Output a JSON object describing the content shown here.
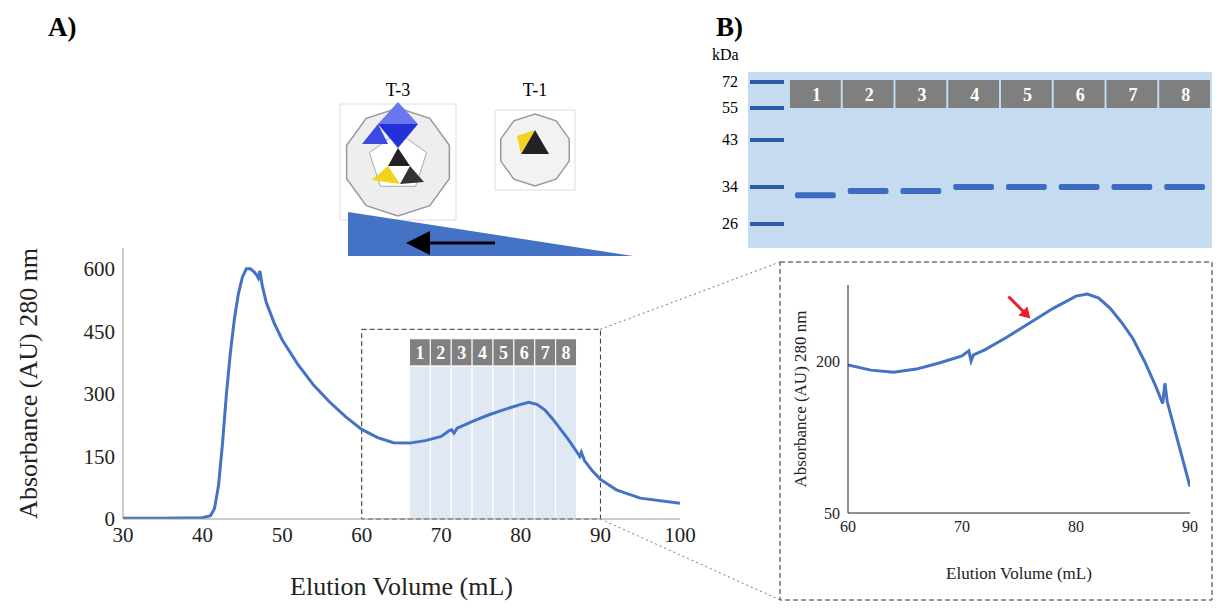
{
  "panel_labels": [
    "A)",
    "B)"
  ],
  "chart_data": [
    {
      "type": "line",
      "x_label": "Elution  Volume (mL)",
      "y_label": "Absorbance (AU) 280 nm",
      "x": [
        30,
        35,
        40,
        41,
        41.5,
        42,
        42.5,
        43,
        43.5,
        44,
        44.5,
        45,
        45.5,
        46,
        46.5,
        46.8,
        47,
        47.2,
        47.5,
        48,
        49,
        50,
        52,
        54,
        56,
        58,
        60,
        62,
        64,
        66,
        68,
        70,
        71,
        71.3,
        71.6,
        72,
        74,
        76,
        78,
        80,
        81,
        82,
        83,
        84,
        85,
        86,
        87,
        87.4,
        87.6,
        88,
        89,
        90,
        92,
        95,
        100
      ],
      "values": [
        2,
        2,
        3,
        8,
        25,
        80,
        180,
        300,
        400,
        480,
        540,
        580,
        600,
        600,
        592,
        585,
        578,
        595,
        560,
        520,
        470,
        430,
        370,
        320,
        280,
        245,
        215,
        195,
        183,
        182,
        188,
        198,
        212,
        214,
        206,
        218,
        235,
        250,
        263,
        275,
        280,
        275,
        262,
        240,
        215,
        190,
        162,
        150,
        160,
        140,
        115,
        95,
        70,
        50,
        38
      ],
      "color": "#4472c4",
      "xlim": [
        30,
        100
      ],
      "xticks": [
        30,
        40,
        50,
        60,
        70,
        80,
        90,
        100
      ],
      "ylim": [
        0,
        650
      ],
      "yticks": [
        0,
        150,
        300,
        450,
        600
      ],
      "fractions": {
        "labels": [
          "1",
          "2",
          "3",
          "4",
          "5",
          "6",
          "7",
          "8"
        ],
        "start": 66,
        "end": 87
      }
    },
    {
      "type": "line",
      "x_label": "Elution  Volume (mL)",
      "y_label": "Absorbance (AU) 280 nm",
      "x": [
        60,
        62,
        64,
        66,
        68,
        70,
        70.6,
        70.8,
        71,
        72,
        74,
        76,
        78,
        80,
        81,
        82,
        83,
        84,
        85,
        86,
        87,
        87.6,
        87.8,
        88,
        89,
        90
      ],
      "values": [
        196,
        191,
        189,
        192,
        198,
        205,
        210,
        200,
        206,
        211,
        224,
        238,
        252,
        264,
        266,
        262,
        252,
        238,
        222,
        200,
        175,
        158,
        178,
        160,
        118,
        76
      ],
      "color": "#4472c4",
      "xlim": [
        60,
        90
      ],
      "xticks": [
        60,
        70,
        80,
        90
      ],
      "ylim": [
        50,
        275
      ],
      "yticks": [
        50,
        200
      ],
      "annotations": [
        {
          "x": 76,
          "y": 242,
          "color": "#e8202a"
        }
      ]
    }
  ],
  "diagram": {
    "particles": [
      "T-3",
      "T-1"
    ]
  },
  "gel": {
    "unit": "kDa",
    "markers": [
      72,
      55,
      43,
      34,
      26
    ],
    "lanes": [
      "1",
      "2",
      "3",
      "4",
      "5",
      "6",
      "7",
      "8"
    ],
    "bands_kda": [
      32,
      33,
      33,
      34,
      34,
      34,
      34,
      34
    ]
  }
}
